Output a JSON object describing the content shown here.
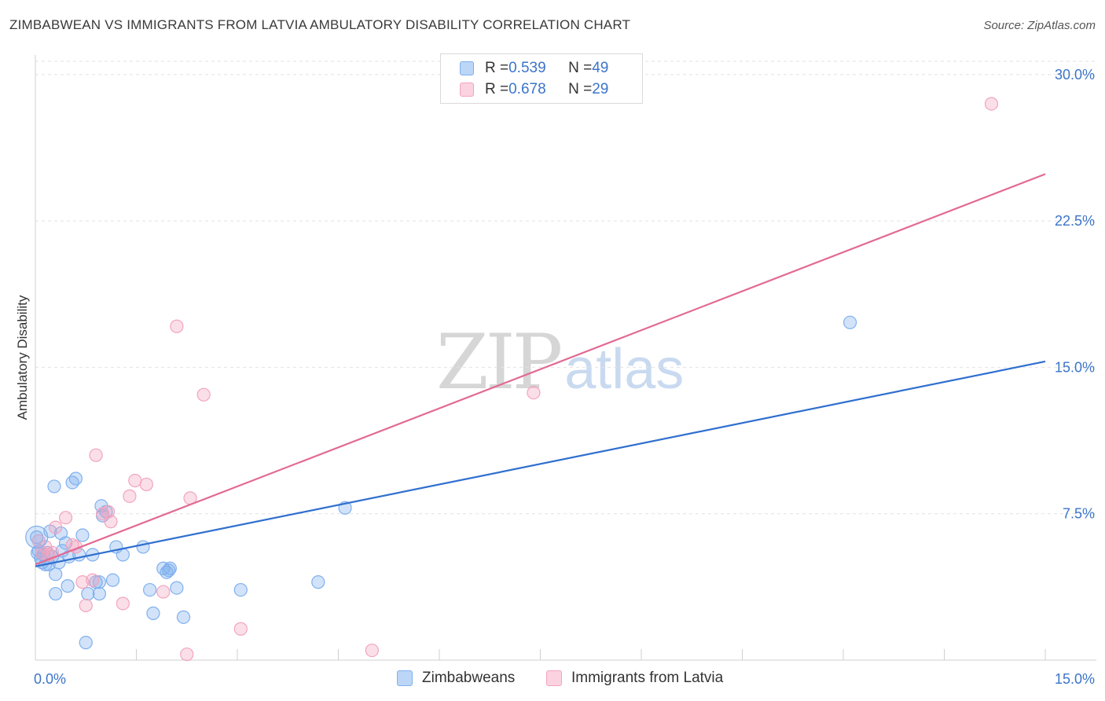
{
  "header": {
    "title": "ZIMBABWEAN VS IMMIGRANTS FROM LATVIA AMBULATORY DISABILITY CORRELATION CHART",
    "source": "Source: ZipAtlas.com"
  },
  "watermark": {
    "zip": "ZIP",
    "atlas": "atlas"
  },
  "legend": {
    "rows": [
      {
        "r_label": "R = ",
        "r_value": "0.539",
        "n_label": "N = ",
        "n_value": "49",
        "color": "#7fb0ee"
      },
      {
        "r_label": "R = ",
        "r_value": "0.678",
        "n_label": "N = ",
        "n_value": "29",
        "color": "#f3a4bd"
      }
    ],
    "bottom": [
      "Zimbabweans",
      "Immigrants from Latvia"
    ]
  },
  "chart_data": {
    "type": "scatter",
    "title": "ZIMBABWEAN VS IMMIGRANTS FROM LATVIA AMBULATORY DISABILITY CORRELATION CHART",
    "xlabel": "",
    "ylabel": "Ambulatory Disability",
    "xlim": [
      0,
      15
    ],
    "ylim": [
      0,
      31
    ],
    "x_tick_labels": [
      "0.0%",
      "15.0%"
    ],
    "y_ticks": [
      7.5,
      15.0,
      22.5,
      30.0
    ],
    "y_tick_labels": [
      "7.5%",
      "15.0%",
      "22.5%",
      "30.0%"
    ],
    "grid": "horizontal dashed",
    "legend_placement": "top-center",
    "series": [
      {
        "name": "Zimbabweans",
        "color": "#7fb0ee",
        "line_color": "#2f6fcf",
        "trend": [
          [
            0,
            4.8
          ],
          [
            15,
            15.3
          ]
        ],
        "points": [
          [
            0.02,
            6.3
          ],
          [
            0.05,
            5.6
          ],
          [
            0.08,
            5.2
          ],
          [
            0.1,
            5.0
          ],
          [
            0.12,
            5.4
          ],
          [
            0.15,
            4.9
          ],
          [
            0.18,
            5.5
          ],
          [
            0.2,
            4.9
          ],
          [
            0.22,
            6.6
          ],
          [
            0.25,
            5.3
          ],
          [
            0.28,
            8.9
          ],
          [
            0.3,
            4.4
          ],
          [
            0.3,
            3.4
          ],
          [
            0.35,
            5.0
          ],
          [
            0.38,
            6.5
          ],
          [
            0.4,
            5.6
          ],
          [
            0.45,
            6.0
          ],
          [
            0.48,
            3.8
          ],
          [
            0.5,
            5.3
          ],
          [
            0.55,
            9.1
          ],
          [
            0.6,
            9.3
          ],
          [
            0.65,
            5.4
          ],
          [
            0.7,
            6.4
          ],
          [
            0.75,
            0.9
          ],
          [
            0.78,
            3.4
          ],
          [
            0.85,
            5.4
          ],
          [
            0.9,
            4.0
          ],
          [
            0.95,
            3.4
          ],
          [
            0.95,
            4.0
          ],
          [
            0.98,
            7.9
          ],
          [
            1.0,
            7.4
          ],
          [
            1.05,
            7.6
          ],
          [
            1.15,
            4.1
          ],
          [
            1.2,
            5.8
          ],
          [
            1.3,
            5.4
          ],
          [
            1.6,
            5.8
          ],
          [
            1.7,
            3.6
          ],
          [
            1.75,
            2.4
          ],
          [
            1.9,
            4.7
          ],
          [
            1.95,
            4.5
          ],
          [
            1.98,
            4.6
          ],
          [
            2.0,
            4.7
          ],
          [
            2.1,
            3.7
          ],
          [
            2.2,
            2.2
          ],
          [
            3.05,
            3.6
          ],
          [
            4.2,
            4.0
          ],
          [
            4.6,
            7.8
          ],
          [
            12.1,
            17.3
          ],
          [
            0.03,
            5.5
          ]
        ]
      },
      {
        "name": "Immigrants from Latvia",
        "color": "#f3a4bd",
        "line_color": "#e26a94",
        "trend": [
          [
            0,
            4.9
          ],
          [
            15,
            24.9
          ]
        ],
        "points": [
          [
            0.05,
            6.1
          ],
          [
            0.1,
            5.5
          ],
          [
            0.15,
            5.8
          ],
          [
            0.2,
            5.4
          ],
          [
            0.3,
            6.8
          ],
          [
            0.45,
            7.3
          ],
          [
            0.55,
            5.9
          ],
          [
            0.6,
            5.8
          ],
          [
            0.7,
            4.0
          ],
          [
            0.75,
            2.8
          ],
          [
            0.85,
            4.1
          ],
          [
            0.9,
            10.5
          ],
          [
            1.0,
            7.5
          ],
          [
            1.08,
            7.6
          ],
          [
            1.12,
            7.1
          ],
          [
            1.3,
            2.9
          ],
          [
            1.4,
            8.4
          ],
          [
            1.48,
            9.2
          ],
          [
            1.65,
            9.0
          ],
          [
            1.9,
            3.5
          ],
          [
            2.1,
            17.1
          ],
          [
            2.25,
            0.3
          ],
          [
            2.3,
            8.3
          ],
          [
            2.5,
            13.6
          ],
          [
            3.05,
            1.6
          ],
          [
            5.0,
            0.5
          ],
          [
            7.4,
            13.7
          ],
          [
            14.2,
            28.5
          ],
          [
            0.25,
            5.5
          ]
        ]
      }
    ]
  }
}
